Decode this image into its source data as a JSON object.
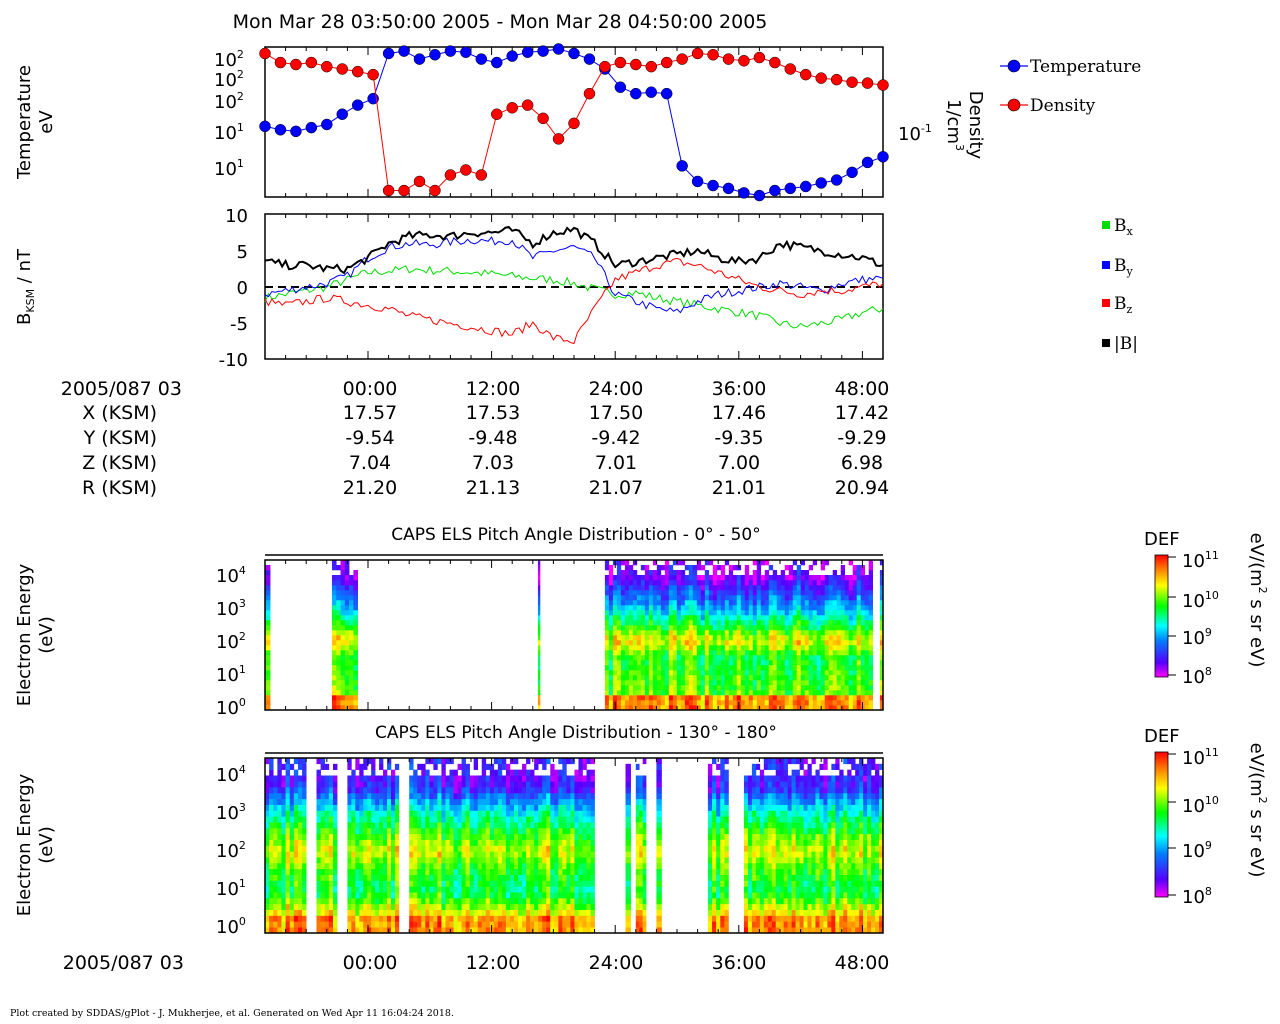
{
  "title": "Mon Mar 28 03:50:00 2005 - Mon Mar 28 04:50:00 2005",
  "footer": "Plot created by SDDAS/gPlot - J. Mukherjee, et al.  Generated on Wed Apr 11 16:04:24 2018.",
  "colors": {
    "temperature": "#0000ff",
    "density": "#ff0000",
    "bx": "#00dd00",
    "by": "#0000ff",
    "bz": "#ff0000",
    "btot": "#000000"
  },
  "panel1": {
    "ylabel_left": [
      "Temperature",
      "eV"
    ],
    "ylabel_right": [
      "Density",
      "1/cm"
    ],
    "ylabel_right_sup": "3",
    "left_ticks": [
      "10",
      "10",
      "10",
      "10",
      "10",
      "10"
    ],
    "left_tick_exps": [
      "2",
      "2",
      "2",
      "1",
      "1",
      ""
    ],
    "right_tick": "10",
    "right_tick_exp": "-1",
    "legend": [
      "Temperature",
      "Density"
    ]
  },
  "panel2": {
    "ylabel": "B",
    "ylabel_sub": "KSM",
    "ylabel_unit": " / nT",
    "yticks": [
      "10",
      "5",
      "0",
      "-5",
      "-10"
    ],
    "ylim": [
      -10,
      10
    ],
    "legend": [
      {
        "base": "B",
        "sub": "x",
        "color": "#00dd00"
      },
      {
        "base": "B",
        "sub": "y",
        "color": "#0000ff"
      },
      {
        "base": "B",
        "sub": "z",
        "color": "#ff0000"
      },
      {
        "base": "|B|",
        "sub": "",
        "color": "#000000"
      }
    ]
  },
  "ephemeris": {
    "rows": [
      {
        "label": "2005/087 03",
        "values": [
          "00:00",
          "12:00",
          "24:00",
          "36:00",
          "48:00"
        ]
      },
      {
        "label": "X (KSM)",
        "values": [
          "17.57",
          "17.53",
          "17.50",
          "17.46",
          "17.42"
        ]
      },
      {
        "label": "Y (KSM)",
        "values": [
          "-9.54",
          "-9.48",
          "-9.42",
          "-9.35",
          "-9.29"
        ]
      },
      {
        "label": "Z (KSM)",
        "values": [
          "7.04",
          "7.03",
          "7.01",
          "7.00",
          "6.98"
        ]
      },
      {
        "label": "R (KSM)",
        "values": [
          "21.20",
          "21.13",
          "21.07",
          "21.01",
          "20.94"
        ]
      }
    ]
  },
  "spec1": {
    "title": "CAPS ELS Pitch Angle Distribution - 0° - 50°",
    "ylabel": [
      "Electron Energy",
      "(eV)"
    ]
  },
  "spec2": {
    "title": "CAPS ELS Pitch Angle Distribution - 130° - 180°",
    "ylabel": [
      "Electron Energy",
      "(eV)"
    ]
  },
  "energy_ticks": [
    {
      "base": "10",
      "exp": "4"
    },
    {
      "base": "10",
      "exp": "3"
    },
    {
      "base": "10",
      "exp": "2"
    },
    {
      "base": "10",
      "exp": "1"
    },
    {
      "base": "10",
      "exp": "0"
    }
  ],
  "colorbar": {
    "title": "DEF",
    "unit_pre": "eV/(m",
    "unit_sup": "2",
    "unit_post": " s sr eV)",
    "ticks": [
      {
        "base": "10",
        "exp": "11"
      },
      {
        "base": "10",
        "exp": "10"
      },
      {
        "base": "10",
        "exp": "9"
      },
      {
        "base": "10",
        "exp": "8"
      }
    ]
  },
  "bottom_axis": {
    "label": "2005/087 03",
    "ticks": [
      "00:00",
      "12:00",
      "24:00",
      "36:00",
      "48:00"
    ]
  },
  "chart_data": [
    {
      "type": "scatter",
      "x_unit": "minutes after 04:00 (axis 00:00)",
      "xlim": [
        -10,
        50
      ],
      "series": [
        {
          "name": "Temperature",
          "x": [
            -10,
            -8.5,
            -7,
            -5.5,
            -4,
            -2.5,
            -1,
            0.5,
            2,
            3.5,
            5,
            6.5,
            8,
            9.5,
            11,
            12.5,
            14,
            15.5,
            17,
            18.5,
            20,
            21.5,
            23,
            24.5,
            26,
            27.5,
            29,
            30.5,
            32,
            33.5,
            35,
            36.5,
            38,
            39.5,
            41,
            42.5,
            44,
            45.5,
            47,
            48.5,
            50
          ],
          "y": [
            35,
            30,
            28,
            33,
            38,
            60,
            90,
            120,
            900,
            1000,
            700,
            850,
            1000,
            950,
            700,
            600,
            800,
            950,
            1000,
            1100,
            900,
            700,
            450,
            200,
            150,
            160,
            150,
            6,
            3,
            2.5,
            2.2,
            1.8,
            1.6,
            2.0,
            2.2,
            2.4,
            2.8,
            3.2,
            4.5,
            7,
            9
          ]
        },
        {
          "name": "Density",
          "x": [
            -10,
            -8.5,
            -7,
            -5.5,
            -4,
            -2.5,
            -1,
            0.5,
            2,
            3.5,
            5,
            6.5,
            8,
            9.5,
            11,
            12.5,
            14,
            15.5,
            17,
            18.5,
            20,
            21.5,
            23,
            24.5,
            26,
            27.5,
            29,
            30.5,
            32,
            33.5,
            35,
            36.5,
            38,
            39.5,
            41,
            42.5,
            44,
            45.5,
            47,
            48.5,
            50
          ],
          "y": [
            0.9,
            0.6,
            0.55,
            0.6,
            0.5,
            0.45,
            0.4,
            0.35,
            0.002,
            0.002,
            0.003,
            0.002,
            0.004,
            0.005,
            0.004,
            0.06,
            0.08,
            0.09,
            0.05,
            0.02,
            0.04,
            0.15,
            0.5,
            0.6,
            0.55,
            0.5,
            0.6,
            0.7,
            0.9,
            0.85,
            0.7,
            0.65,
            0.75,
            0.6,
            0.45,
            0.35,
            0.3,
            0.28,
            0.25,
            0.24,
            0.22
          ]
        }
      ]
    },
    {
      "type": "line",
      "x_unit": "minutes after 04:00 (axis 00:00)",
      "xlim": [
        -10,
        50
      ],
      "ylim": [
        -10,
        10
      ],
      "series": [
        {
          "name": "Bx",
          "x": [
            -10,
            -8,
            -6,
            -4,
            -2,
            0,
            2,
            4,
            6,
            8,
            10,
            12,
            14,
            16,
            18,
            20,
            22,
            24,
            26,
            28,
            30,
            32,
            34,
            36,
            38,
            40,
            42,
            44,
            46,
            48,
            50
          ],
          "y": [
            -1.5,
            -1,
            -0.5,
            0,
            1,
            2,
            2.2,
            2.5,
            2.3,
            2.2,
            2,
            1.8,
            1.5,
            1.2,
            1,
            0.5,
            -0.3,
            -1,
            -0.8,
            -1.5,
            -2,
            -2.5,
            -3,
            -3.5,
            -4,
            -5,
            -5.5,
            -5,
            -4.5,
            -3.5,
            -3
          ]
        },
        {
          "name": "By",
          "x": [
            -10,
            -8,
            -6,
            -4,
            -2,
            0,
            2,
            4,
            6,
            8,
            10,
            12,
            14,
            16,
            18,
            20,
            22,
            24,
            26,
            28,
            30,
            32,
            34,
            36,
            38,
            40,
            42,
            44,
            46,
            48,
            50
          ],
          "y": [
            -1,
            -0.5,
            0,
            0.5,
            1.5,
            4,
            5.5,
            6,
            5.8,
            6.2,
            6.5,
            6.3,
            6.5,
            4,
            5,
            5.5,
            4,
            -1,
            -2,
            -3,
            -3.5,
            -2,
            -1,
            -0.5,
            0,
            0.5,
            0,
            -0.5,
            0.5,
            1,
            1.2
          ]
        },
        {
          "name": "Bz",
          "x": [
            -10,
            -8,
            -6,
            -4,
            -2,
            0,
            2,
            4,
            6,
            8,
            10,
            12,
            14,
            16,
            18,
            20,
            22,
            24,
            26,
            28,
            30,
            32,
            34,
            36,
            38,
            40,
            42,
            44,
            46,
            48,
            50
          ],
          "y": [
            -2,
            -2.5,
            -2,
            -1.5,
            -2,
            -2.5,
            -3,
            -4,
            -4.5,
            -5,
            -5.5,
            -6,
            -6.5,
            -5,
            -7,
            -7.5,
            -3,
            1,
            2,
            3,
            3.5,
            3,
            2,
            1,
            0,
            -0.5,
            -1,
            -0.5,
            -0.5,
            0,
            0.5
          ]
        },
        {
          "name": "|B|",
          "x": [
            -10,
            -8,
            -6,
            -4,
            -2,
            0,
            2,
            4,
            6,
            8,
            10,
            12,
            14,
            16,
            18,
            20,
            22,
            24,
            26,
            28,
            30,
            32,
            34,
            36,
            38,
            40,
            42,
            44,
            46,
            48,
            50
          ],
          "y": [
            3.5,
            3,
            3,
            2.5,
            2.5,
            4,
            6,
            7,
            7.2,
            7,
            7.5,
            7.5,
            7.8,
            6,
            7.5,
            8,
            6,
            3,
            3.5,
            4,
            4.5,
            5,
            4,
            3.5,
            4,
            6,
            5.5,
            5,
            4.5,
            4,
            3
          ]
        }
      ]
    },
    {
      "type": "heatmap",
      "title": "CAPS ELS Pitch Angle Distribution - 0° - 50°",
      "x_unit": "minutes after 04:00 (axis 00:00)",
      "xlim": [
        -10,
        50
      ],
      "y_unit": "eV (log10)",
      "ylim": [
        0,
        4.3
      ],
      "z_unit": "log10 DEF",
      "zlim": [
        8,
        11
      ],
      "data_intervals": [
        [
          -10,
          -9.5
        ],
        [
          -3.5,
          -1
        ],
        [
          16.5,
          16.7
        ],
        [
          23,
          49
        ],
        [
          49.7,
          50
        ]
      ],
      "energy_profile": [
        [
          0.0,
          10.6
        ],
        [
          0.4,
          10.6
        ],
        [
          0.5,
          9.9
        ],
        [
          1.5,
          9.7
        ],
        [
          2.0,
          10.3
        ],
        [
          2.5,
          9.6
        ],
        [
          3.0,
          9.0
        ],
        [
          3.8,
          8.3
        ]
      ]
    },
    {
      "type": "heatmap",
      "title": "CAPS ELS Pitch Angle Distribution - 130° - 180°",
      "x_unit": "minutes after 04:00 (axis 00:00)",
      "xlim": [
        -10,
        50
      ],
      "y_unit": "eV (log10)",
      "ylim": [
        0,
        4.3
      ],
      "z_unit": "log10 DEF",
      "zlim": [
        8,
        11
      ],
      "data_intervals": [
        [
          -10,
          -6
        ],
        [
          -5,
          -3
        ],
        [
          -2,
          3
        ],
        [
          4,
          22
        ],
        [
          25,
          25.5
        ],
        [
          26,
          27
        ],
        [
          28,
          28.5
        ],
        [
          33,
          35
        ],
        [
          36.5,
          50
        ]
      ],
      "energy_profile": [
        [
          0.0,
          10.6
        ],
        [
          0.4,
          10.6
        ],
        [
          0.5,
          10.3
        ],
        [
          1.0,
          9.6
        ],
        [
          1.5,
          9.8
        ],
        [
          2.0,
          10.2
        ],
        [
          2.5,
          9.8
        ],
        [
          3.0,
          9.3
        ],
        [
          3.6,
          8.5
        ]
      ]
    }
  ]
}
